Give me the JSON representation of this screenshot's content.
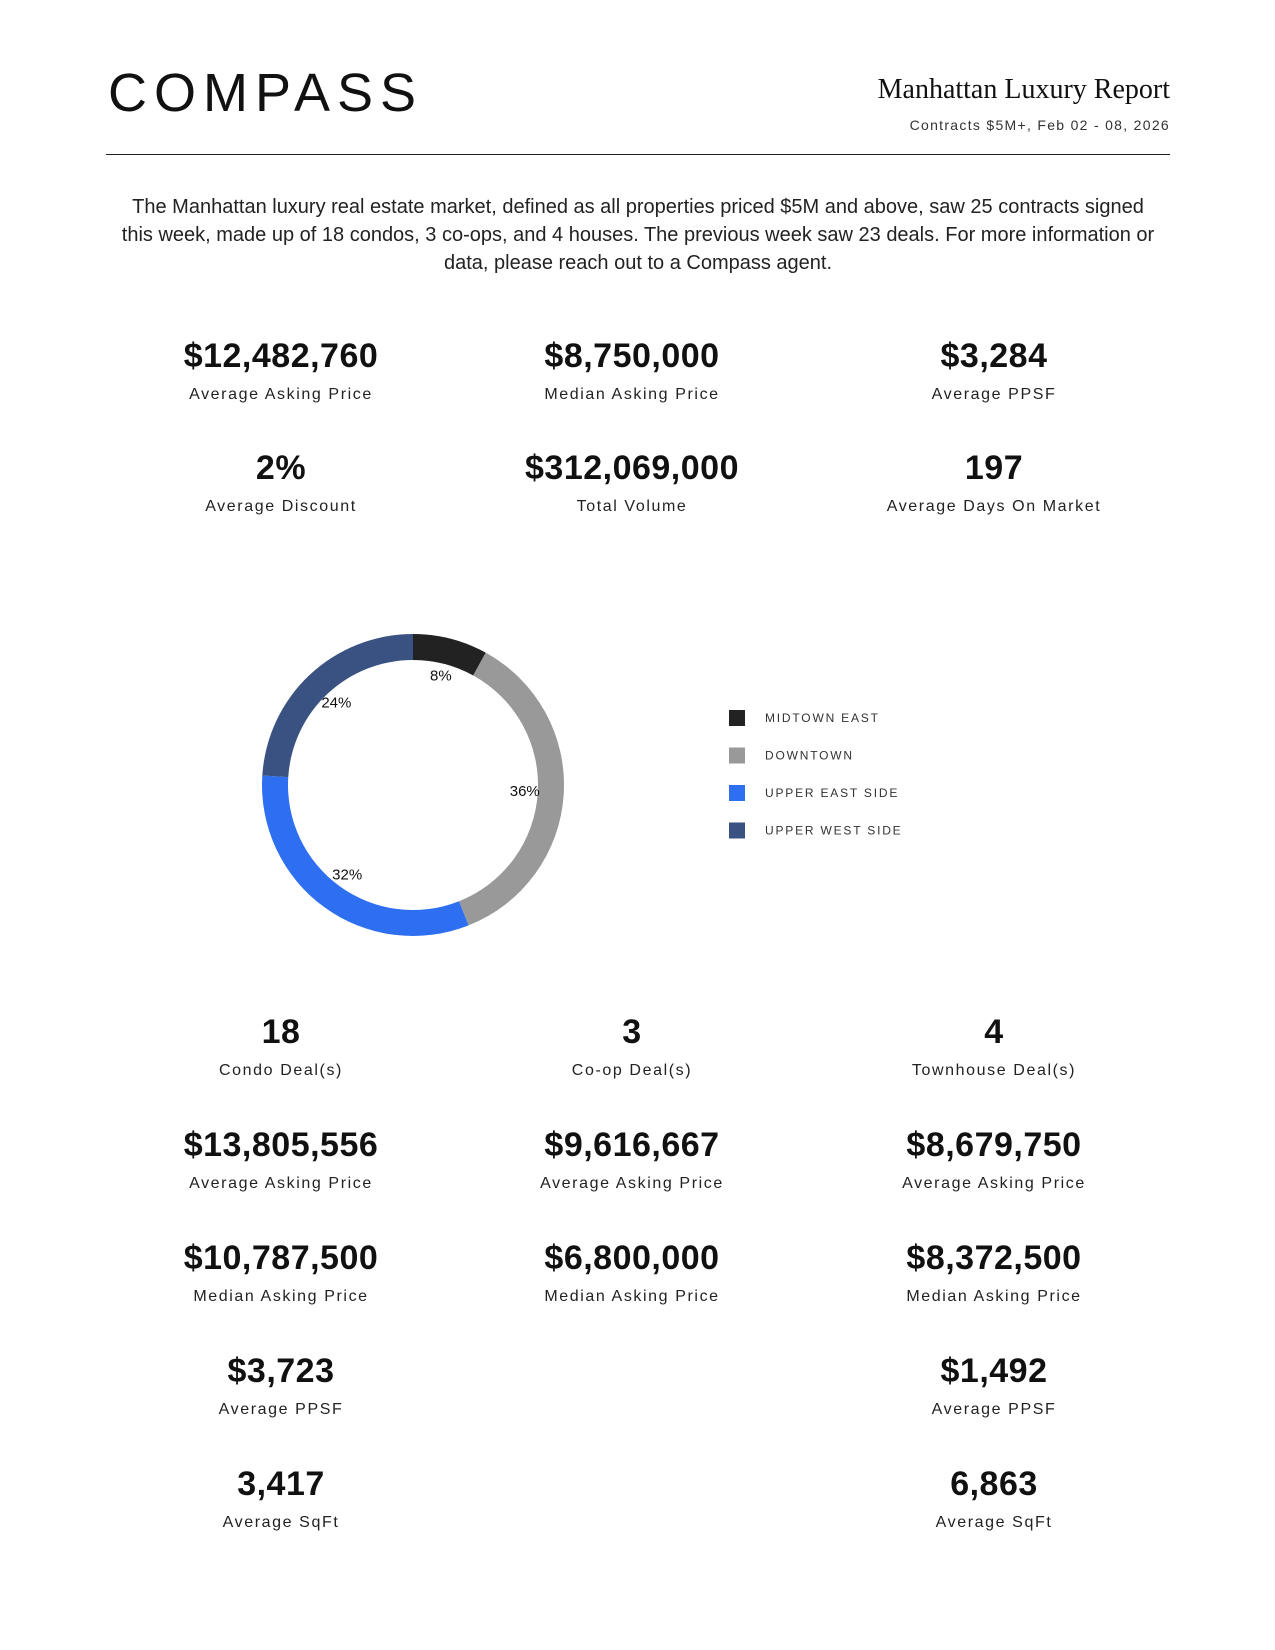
{
  "header": {
    "logo": "COMPASS",
    "title": "Manhattan Luxury Report",
    "subtitle": "Contracts $5M+, Feb 02 - 08, 2026"
  },
  "intro": "The Manhattan luxury real estate market, defined as all properties priced $5M and above, saw 25 contracts signed this week, made up of 18 condos, 3 co-ops, and 4 houses. The previous week saw 23 deals. For more information or data, please reach out to a Compass agent.",
  "stats": [
    {
      "value": "$12,482,760",
      "label": "Average Asking Price"
    },
    {
      "value": "$8,750,000",
      "label": "Median Asking Price"
    },
    {
      "value": "$3,284",
      "label": "Average PPSF"
    },
    {
      "value": "2%",
      "label": "Average Discount"
    },
    {
      "value": "$312,069,000",
      "label": "Total Volume"
    },
    {
      "value": "197",
      "label": "Average Days On Market"
    }
  ],
  "chart_data": {
    "type": "donut",
    "categories": [
      "MIDTOWN EAST",
      "DOWNTOWN",
      "UPPER EAST SIDE",
      "UPPER WEST SIDE"
    ],
    "values": [
      8,
      36,
      32,
      24
    ],
    "value_labels": [
      "8%",
      "36%",
      "32%",
      "24%"
    ],
    "colors": [
      "#222222",
      "#999999",
      "#2e6ff2",
      "#3a5282"
    ]
  },
  "breakdown": [
    {
      "items": [
        {
          "value": "18",
          "label": "Condo Deal(s)"
        },
        {
          "value": "$13,805,556",
          "label": "Average Asking Price"
        },
        {
          "value": "$10,787,500",
          "label": "Median Asking Price"
        },
        {
          "value": "$3,723",
          "label": "Average PPSF"
        },
        {
          "value": "3,417",
          "label": "Average SqFt"
        }
      ]
    },
    {
      "items": [
        {
          "value": "3",
          "label": "Co-op Deal(s)"
        },
        {
          "value": "$9,616,667",
          "label": "Average Asking Price"
        },
        {
          "value": "$6,800,000",
          "label": "Median Asking Price"
        }
      ]
    },
    {
      "items": [
        {
          "value": "4",
          "label": "Townhouse Deal(s)"
        },
        {
          "value": "$8,679,750",
          "label": "Average Asking Price"
        },
        {
          "value": "$8,372,500",
          "label": "Median Asking Price"
        },
        {
          "value": "$1,492",
          "label": "Average PPSF"
        },
        {
          "value": "6,863",
          "label": "Average SqFt"
        }
      ]
    }
  ]
}
